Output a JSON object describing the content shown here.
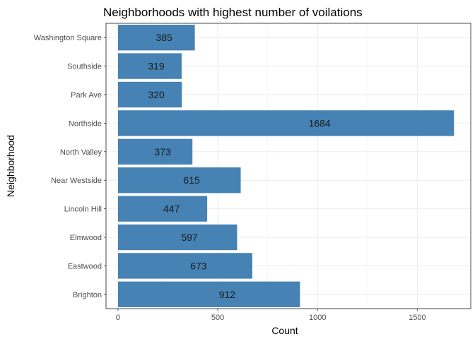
{
  "chart_data": {
    "type": "bar",
    "orientation": "horizontal",
    "title": "Neighborhoods with highest number of voilations",
    "xlabel": "Count",
    "ylabel": "Neighborhood",
    "categories": [
      "Brighton",
      "Eastwood",
      "Elmwood",
      "Lincoln Hill",
      "Near Westside",
      "North Valley",
      "Northside",
      "Park Ave",
      "Southside",
      "Washington Square"
    ],
    "values": [
      912,
      673,
      597,
      447,
      615,
      373,
      1684,
      320,
      319,
      385
    ],
    "xlim": [
      -60,
      1768
    ],
    "xticks": [
      0,
      500,
      1000,
      1500
    ],
    "xtick_labels": [
      "0",
      "500",
      "1000",
      "1500"
    ],
    "bar_color": "#4682B4",
    "grid": true,
    "legend": "none"
  }
}
